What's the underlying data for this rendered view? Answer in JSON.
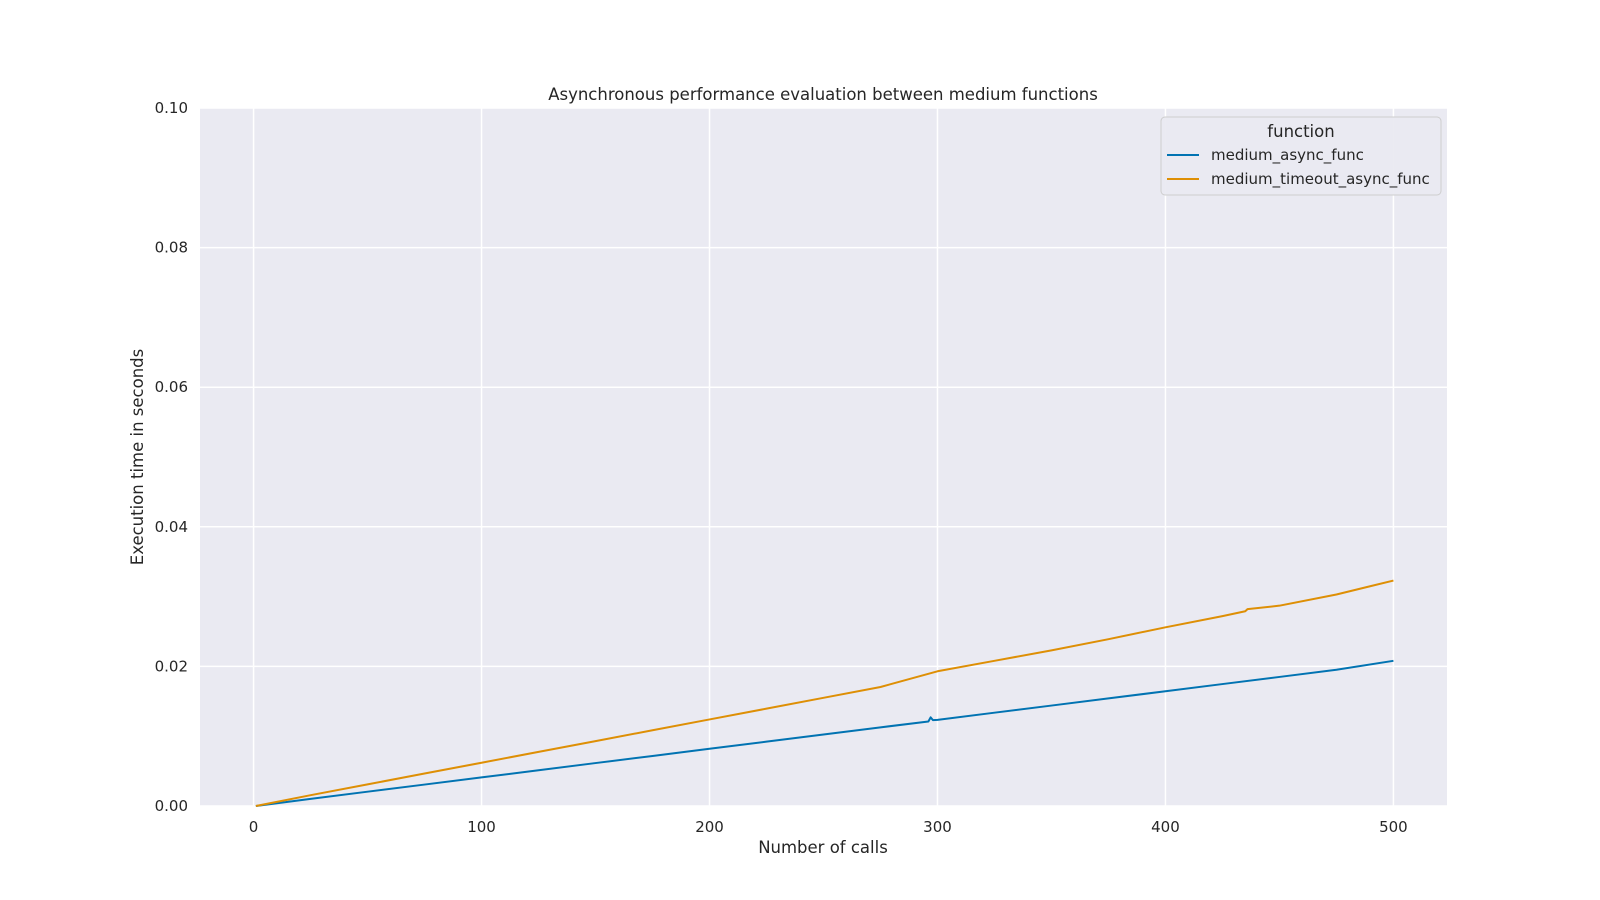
{
  "chart_data": {
    "type": "line",
    "title": "Asynchronous performance evaluation between medium functions",
    "xlabel": "Number of calls",
    "ylabel": "Execution time in seconds",
    "xlim": [
      -23.5,
      523.5
    ],
    "ylim": [
      0,
      0.1
    ],
    "xticks": [
      0,
      100,
      200,
      300,
      400,
      500
    ],
    "xtick_labels": [
      "0",
      "100",
      "200",
      "300",
      "400",
      "500"
    ],
    "yticks": [
      0,
      0.02,
      0.04,
      0.06,
      0.08,
      0.1
    ],
    "ytick_labels": [
      "0.00",
      "0.02",
      "0.04",
      "0.06",
      "0.08",
      "0.10"
    ],
    "grid": true,
    "background": "#eaeaf2",
    "legend": {
      "title": "function",
      "placement": "top-right"
    },
    "series": [
      {
        "name": "medium_async_func",
        "color": "#0173b2",
        "x": [
          1,
          25,
          50,
          75,
          100,
          125,
          150,
          175,
          200,
          225,
          250,
          275,
          296,
          297,
          298,
          300,
          325,
          350,
          375,
          400,
          425,
          450,
          475,
          500
        ],
        "y": [
          0.0,
          0.00102,
          0.00205,
          0.00307,
          0.0041,
          0.00512,
          0.00615,
          0.00717,
          0.0082,
          0.00922,
          0.01025,
          0.01127,
          0.0121,
          0.0127,
          0.0123,
          0.01234,
          0.01337,
          0.01439,
          0.01542,
          0.01644,
          0.01747,
          0.01849,
          0.01952,
          0.0208
        ]
      },
      {
        "name": "medium_timeout_async_func",
        "color": "#de8f05",
        "x": [
          1,
          25,
          50,
          75,
          100,
          125,
          150,
          175,
          200,
          225,
          250,
          275,
          300,
          325,
          350,
          375,
          400,
          425,
          435,
          436,
          450,
          475,
          490,
          500
        ],
        "y": [
          0.0,
          0.00155,
          0.0031,
          0.00465,
          0.0062,
          0.00775,
          0.0093,
          0.01085,
          0.0124,
          0.01395,
          0.0155,
          0.01705,
          0.0193,
          0.0208,
          0.0223,
          0.0239,
          0.0256,
          0.0272,
          0.0279,
          0.0282,
          0.0287,
          0.0303,
          0.0315,
          0.0323
        ]
      }
    ]
  }
}
